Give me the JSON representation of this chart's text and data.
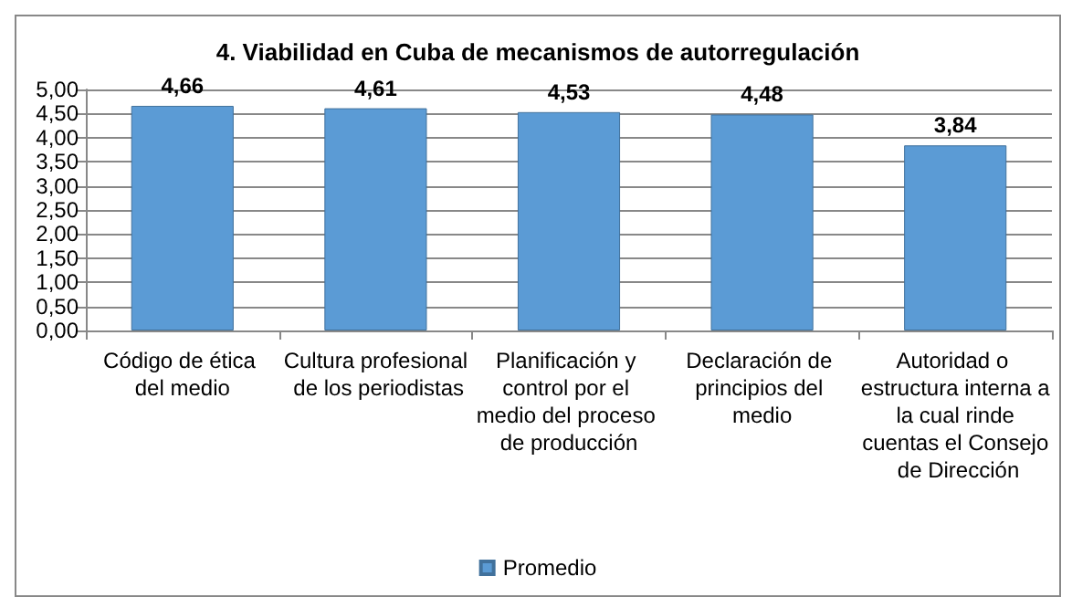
{
  "chart_data": {
    "type": "bar",
    "title": "4. Viabilidad en Cuba de mecanismos de autorregulación",
    "categories": [
      "Código de ética del medio",
      "Cultura profesional de los periodistas",
      "Planificación y control por el medio del proceso de producción",
      "Declaración de principios del medio",
      "Autoridad o estructura interna a la cual rinde cuentas el Consejo de Dirección"
    ],
    "series": [
      {
        "name": "Promedio",
        "color": "#5b9bd5",
        "values": [
          4.66,
          4.61,
          4.53,
          4.48,
          3.84
        ],
        "value_labels": [
          "4,66",
          "4,61",
          "4,53",
          "4,48",
          "3,84"
        ]
      }
    ],
    "ylim": [
      0,
      5
    ],
    "yticks": [
      {
        "value": 0,
        "label": "0,00"
      },
      {
        "value": 0.5,
        "label": "0,50"
      },
      {
        "value": 1,
        "label": "1,00"
      },
      {
        "value": 1.5,
        "label": "1,50"
      },
      {
        "value": 2,
        "label": "2,00"
      },
      {
        "value": 2.5,
        "label": "2,50"
      },
      {
        "value": 3,
        "label": "3,00"
      },
      {
        "value": 3.5,
        "label": "3,50"
      },
      {
        "value": 4,
        "label": "4,00"
      },
      {
        "value": 4.5,
        "label": "4,50"
      },
      {
        "value": 5,
        "label": "5,00"
      }
    ],
    "grid": "y",
    "legend": "bottom"
  }
}
